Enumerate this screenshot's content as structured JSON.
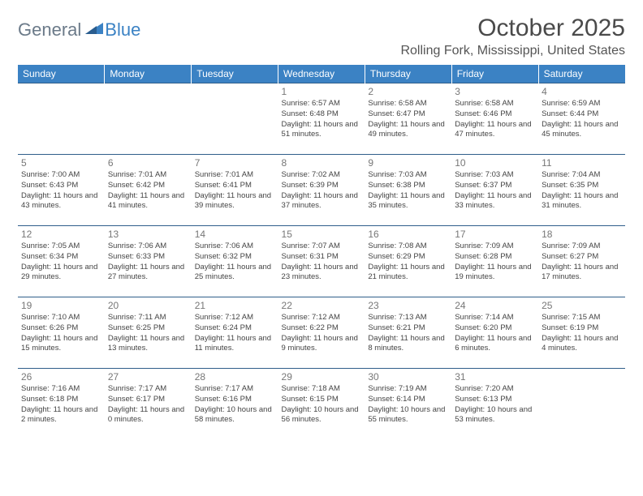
{
  "logo": {
    "general": "General",
    "blue": "Blue"
  },
  "header": {
    "month_title": "October 2025",
    "location": "Rolling Fork, Mississippi, United States"
  },
  "colors": {
    "header_bg": "#3b82c4",
    "header_text": "#ffffff",
    "row_border": "#2f5e8a",
    "logo_gray": "#6b7a89",
    "logo_blue": "#3b82c4"
  },
  "weekdays": [
    "Sunday",
    "Monday",
    "Tuesday",
    "Wednesday",
    "Thursday",
    "Friday",
    "Saturday"
  ],
  "first_day_index": 3,
  "days": [
    {
      "n": "1",
      "sr": "6:57 AM",
      "ss": "6:48 PM",
      "dl": "11 hours and 51 minutes."
    },
    {
      "n": "2",
      "sr": "6:58 AM",
      "ss": "6:47 PM",
      "dl": "11 hours and 49 minutes."
    },
    {
      "n": "3",
      "sr": "6:58 AM",
      "ss": "6:46 PM",
      "dl": "11 hours and 47 minutes."
    },
    {
      "n": "4",
      "sr": "6:59 AM",
      "ss": "6:44 PM",
      "dl": "11 hours and 45 minutes."
    },
    {
      "n": "5",
      "sr": "7:00 AM",
      "ss": "6:43 PM",
      "dl": "11 hours and 43 minutes."
    },
    {
      "n": "6",
      "sr": "7:01 AM",
      "ss": "6:42 PM",
      "dl": "11 hours and 41 minutes."
    },
    {
      "n": "7",
      "sr": "7:01 AM",
      "ss": "6:41 PM",
      "dl": "11 hours and 39 minutes."
    },
    {
      "n": "8",
      "sr": "7:02 AM",
      "ss": "6:39 PM",
      "dl": "11 hours and 37 minutes."
    },
    {
      "n": "9",
      "sr": "7:03 AM",
      "ss": "6:38 PM",
      "dl": "11 hours and 35 minutes."
    },
    {
      "n": "10",
      "sr": "7:03 AM",
      "ss": "6:37 PM",
      "dl": "11 hours and 33 minutes."
    },
    {
      "n": "11",
      "sr": "7:04 AM",
      "ss": "6:35 PM",
      "dl": "11 hours and 31 minutes."
    },
    {
      "n": "12",
      "sr": "7:05 AM",
      "ss": "6:34 PM",
      "dl": "11 hours and 29 minutes."
    },
    {
      "n": "13",
      "sr": "7:06 AM",
      "ss": "6:33 PM",
      "dl": "11 hours and 27 minutes."
    },
    {
      "n": "14",
      "sr": "7:06 AM",
      "ss": "6:32 PM",
      "dl": "11 hours and 25 minutes."
    },
    {
      "n": "15",
      "sr": "7:07 AM",
      "ss": "6:31 PM",
      "dl": "11 hours and 23 minutes."
    },
    {
      "n": "16",
      "sr": "7:08 AM",
      "ss": "6:29 PM",
      "dl": "11 hours and 21 minutes."
    },
    {
      "n": "17",
      "sr": "7:09 AM",
      "ss": "6:28 PM",
      "dl": "11 hours and 19 minutes."
    },
    {
      "n": "18",
      "sr": "7:09 AM",
      "ss": "6:27 PM",
      "dl": "11 hours and 17 minutes."
    },
    {
      "n": "19",
      "sr": "7:10 AM",
      "ss": "6:26 PM",
      "dl": "11 hours and 15 minutes."
    },
    {
      "n": "20",
      "sr": "7:11 AM",
      "ss": "6:25 PM",
      "dl": "11 hours and 13 minutes."
    },
    {
      "n": "21",
      "sr": "7:12 AM",
      "ss": "6:24 PM",
      "dl": "11 hours and 11 minutes."
    },
    {
      "n": "22",
      "sr": "7:12 AM",
      "ss": "6:22 PM",
      "dl": "11 hours and 9 minutes."
    },
    {
      "n": "23",
      "sr": "7:13 AM",
      "ss": "6:21 PM",
      "dl": "11 hours and 8 minutes."
    },
    {
      "n": "24",
      "sr": "7:14 AM",
      "ss": "6:20 PM",
      "dl": "11 hours and 6 minutes."
    },
    {
      "n": "25",
      "sr": "7:15 AM",
      "ss": "6:19 PM",
      "dl": "11 hours and 4 minutes."
    },
    {
      "n": "26",
      "sr": "7:16 AM",
      "ss": "6:18 PM",
      "dl": "11 hours and 2 minutes."
    },
    {
      "n": "27",
      "sr": "7:17 AM",
      "ss": "6:17 PM",
      "dl": "11 hours and 0 minutes."
    },
    {
      "n": "28",
      "sr": "7:17 AM",
      "ss": "6:16 PM",
      "dl": "10 hours and 58 minutes."
    },
    {
      "n": "29",
      "sr": "7:18 AM",
      "ss": "6:15 PM",
      "dl": "10 hours and 56 minutes."
    },
    {
      "n": "30",
      "sr": "7:19 AM",
      "ss": "6:14 PM",
      "dl": "10 hours and 55 minutes."
    },
    {
      "n": "31",
      "sr": "7:20 AM",
      "ss": "6:13 PM",
      "dl": "10 hours and 53 minutes."
    }
  ],
  "labels": {
    "sunrise": "Sunrise:",
    "sunset": "Sunset:",
    "daylight": "Daylight:"
  }
}
